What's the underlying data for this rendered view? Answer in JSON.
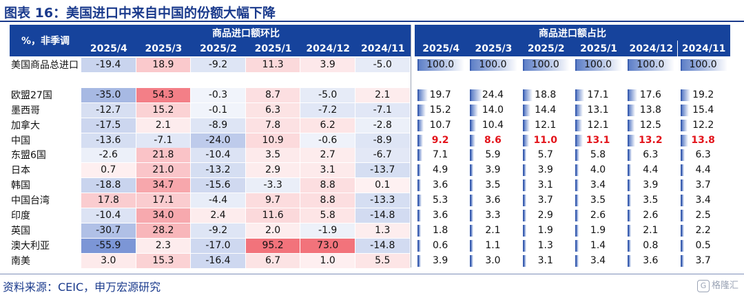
{
  "title": "图表 16：美国进口中来自中国的份额大幅下降",
  "source": "资料来源：CEIC，申万宏源研究",
  "watermark": "格隆汇",
  "corner_label": "%，非季调",
  "group_left": "商品进口额环比",
  "group_right": "商品进口额占比",
  "periods": [
    "2025/4",
    "2025/3",
    "2025/2",
    "2025/1",
    "2024/12",
    "2024/11"
  ],
  "colors": {
    "header": "#16439c",
    "positive": "#ef7f84",
    "negative": "#6e8fd0",
    "highlight": "#e3141b"
  },
  "rows": [
    {
      "label": "美国商品总进口",
      "mom": [
        "-19.4",
        "18.9",
        "-9.2",
        "11.3",
        "3.9",
        "-5.0"
      ],
      "share": [
        "100.0",
        "100.0",
        "100.0",
        "100.0",
        "100.0",
        "100.0"
      ]
    },
    {
      "label": "",
      "mom": [
        "",
        "",
        "",
        "",
        "",
        ""
      ],
      "share": [
        "",
        "",
        "",
        "",
        "",
        ""
      ]
    },
    {
      "label": "欧盟27国",
      "mom": [
        "-35.0",
        "54.3",
        "-0.3",
        "8.7",
        "-5.0",
        "2.1"
      ],
      "share": [
        "19.7",
        "24.4",
        "18.8",
        "17.1",
        "17.6",
        "19.2"
      ]
    },
    {
      "label": "墨西哥",
      "mom": [
        "-12.7",
        "15.2",
        "-0.1",
        "6.3",
        "-7.2",
        "-7.1"
      ],
      "share": [
        "15.2",
        "14.0",
        "14.4",
        "13.1",
        "13.8",
        "15.4"
      ]
    },
    {
      "label": "加拿大",
      "mom": [
        "-17.5",
        "2.1",
        "-8.9",
        "7.8",
        "6.2",
        "-2.8"
      ],
      "share": [
        "10.7",
        "10.4",
        "12.1",
        "12.1",
        "12.5",
        "12.2"
      ]
    },
    {
      "label": "中国",
      "mom": [
        "-13.6",
        "-7.1",
        "-24.0",
        "10.9",
        "-0.6",
        "-8.9"
      ],
      "share": [
        "9.2",
        "8.6",
        "11.0",
        "13.1",
        "13.2",
        "13.8"
      ],
      "highlight": true
    },
    {
      "label": "东盟6国",
      "mom": [
        "-2.6",
        "21.8",
        "-10.4",
        "3.5",
        "2.7",
        "-6.7"
      ],
      "share": [
        "7.1",
        "5.9",
        "5.7",
        "5.8",
        "6.3",
        "6.3"
      ]
    },
    {
      "label": "日本",
      "mom": [
        "0.7",
        "21.0",
        "-13.2",
        "2.9",
        "3.1",
        "-13.7"
      ],
      "share": [
        "4.9",
        "3.9",
        "3.9",
        "4.0",
        "4.4",
        "4.4"
      ]
    },
    {
      "label": "韩国",
      "mom": [
        "-18.8",
        "34.7",
        "-15.6",
        "-3.3",
        "8.8",
        "0.1"
      ],
      "share": [
        "3.6",
        "3.5",
        "3.1",
        "3.4",
        "3.9",
        "3.7"
      ]
    },
    {
      "label": "中国台湾",
      "mom": [
        "17.8",
        "17.1",
        "-4.4",
        "9.7",
        "8.8",
        "-13.3"
      ],
      "share": [
        "5.3",
        "3.6",
        "3.7",
        "3.5",
        "3.5",
        "3.4"
      ]
    },
    {
      "label": "印度",
      "mom": [
        "-10.4",
        "34.0",
        "2.4",
        "11.6",
        "5.8",
        "-14.8"
      ],
      "share": [
        "3.6",
        "3.3",
        "2.9",
        "2.6",
        "2.6",
        "2.5"
      ]
    },
    {
      "label": "英国",
      "mom": [
        "-30.7",
        "28.2",
        "-9.2",
        "2.0",
        "-1.9",
        "1.3"
      ],
      "share": [
        "1.8",
        "2.1",
        "1.9",
        "1.9",
        "2.1",
        "2.2"
      ]
    },
    {
      "label": "澳大利亚",
      "mom": [
        "-55.9",
        "2.3",
        "-17.0",
        "95.2",
        "73.0",
        "-14.8"
      ],
      "share": [
        "0.6",
        "1.1",
        "1.3",
        "1.4",
        "0.8",
        "0.5"
      ]
    },
    {
      "label": "南美",
      "mom": [
        "3.0",
        "15.3",
        "-16.4",
        "6.7",
        "1.0",
        "5.5"
      ],
      "share": [
        "3.9",
        "3.0",
        "3.1",
        "3.4",
        "3.6",
        "3.7"
      ]
    }
  ]
}
